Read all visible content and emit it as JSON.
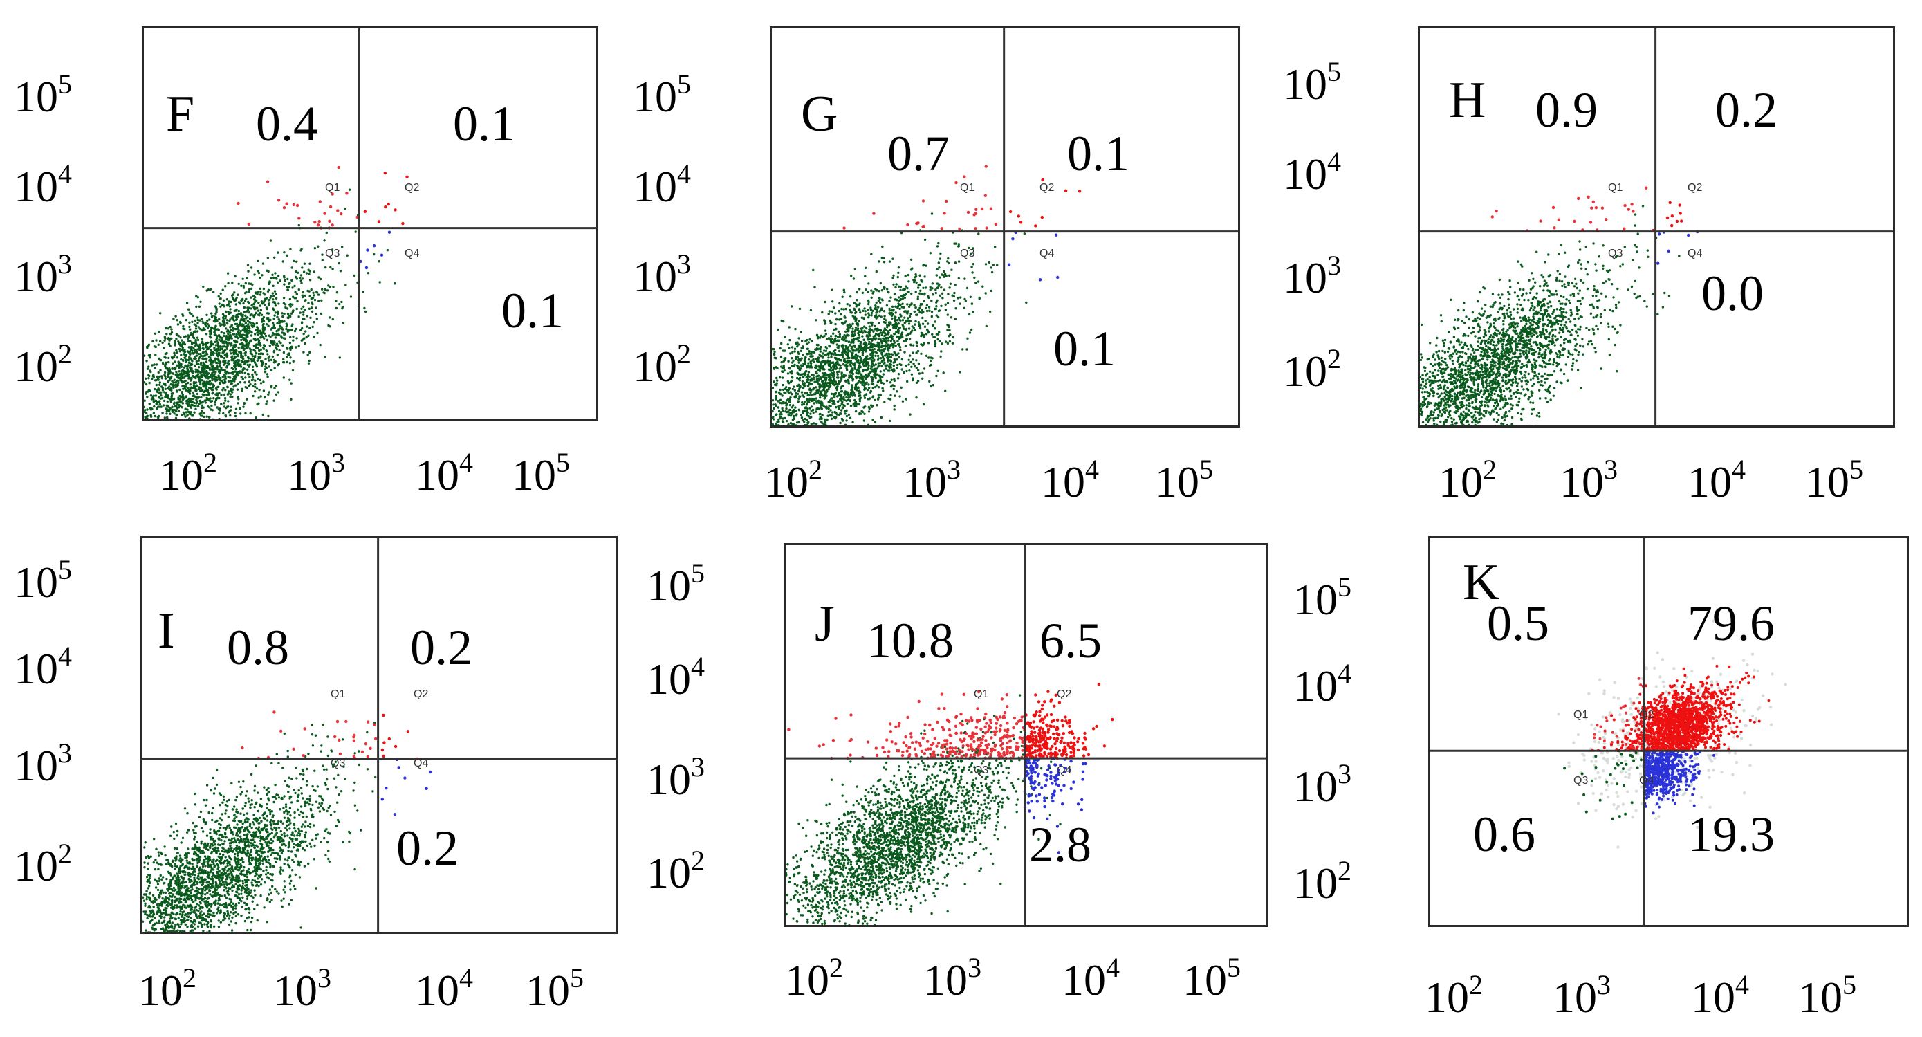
{
  "colors": {
    "Q1": "#e8333b",
    "Q2": "#ee1111",
    "Q3": "#0b5a1e",
    "Q4": "#2a32d8",
    "gate_line": "#333333"
  },
  "tick_labels": {
    "base": "10",
    "exponents": [
      "2",
      "3",
      "4",
      "5"
    ]
  },
  "gate_names": [
    "Q1",
    "Q2",
    "Q3",
    "Q4"
  ],
  "chart_data": [
    {
      "type": "scatter",
      "panel": "F",
      "quadrant_percent": {
        "Q1": "0.4",
        "Q2": "0.1",
        "Q4": "0.1"
      },
      "xlim": [
        50,
        200000
      ],
      "ylim": [
        50,
        200000
      ],
      "x_scale": "log",
      "y_scale": "log",
      "gate": {
        "x": 2500,
        "y": 3000
      }
    },
    {
      "type": "scatter",
      "panel": "G",
      "quadrant_percent": {
        "Q1": "0.7",
        "Q2": "0.1",
        "Q4": "0.1"
      },
      "xlim": [
        50,
        200000
      ],
      "ylim": [
        50,
        200000
      ],
      "x_scale": "log",
      "y_scale": "log",
      "gate": {
        "x": 3000,
        "y": 3000
      }
    },
    {
      "type": "scatter",
      "panel": "H",
      "quadrant_percent": {
        "Q1": "0.9",
        "Q2": "0.2",
        "Q4": "0.0"
      },
      "xlim": [
        50,
        200000
      ],
      "ylim": [
        50,
        200000
      ],
      "x_scale": "log",
      "y_scale": "log",
      "gate": {
        "x": 3000,
        "y": 3000
      }
    },
    {
      "type": "scatter",
      "panel": "I",
      "quadrant_percent": {
        "Q1": "0.8",
        "Q2": "0.2",
        "Q4": "0.2"
      },
      "xlim": [
        50,
        200000
      ],
      "ylim": [
        50,
        200000
      ],
      "x_scale": "log",
      "y_scale": "log",
      "gate": {
        "x": 3000,
        "y": 2000
      }
    },
    {
      "type": "scatter",
      "panel": "J",
      "quadrant_percent": {
        "Q1": "10.8",
        "Q2": "6.5",
        "Q4": "2.8"
      },
      "xlim": [
        50,
        200000
      ],
      "ylim": [
        50,
        200000
      ],
      "x_scale": "log",
      "y_scale": "log",
      "gate": {
        "x": 3000,
        "y": 2000
      }
    },
    {
      "type": "scatter",
      "panel": "K",
      "quadrant_percent": {
        "Q1": "0.5",
        "Q2": "79.6",
        "Q3": "0.6",
        "Q4": "19.3"
      },
      "xlim": [
        50,
        200000
      ],
      "ylim": [
        50,
        200000
      ],
      "x_scale": "log",
      "y_scale": "log",
      "gate": {
        "x": 2000,
        "y": 2200
      }
    }
  ]
}
